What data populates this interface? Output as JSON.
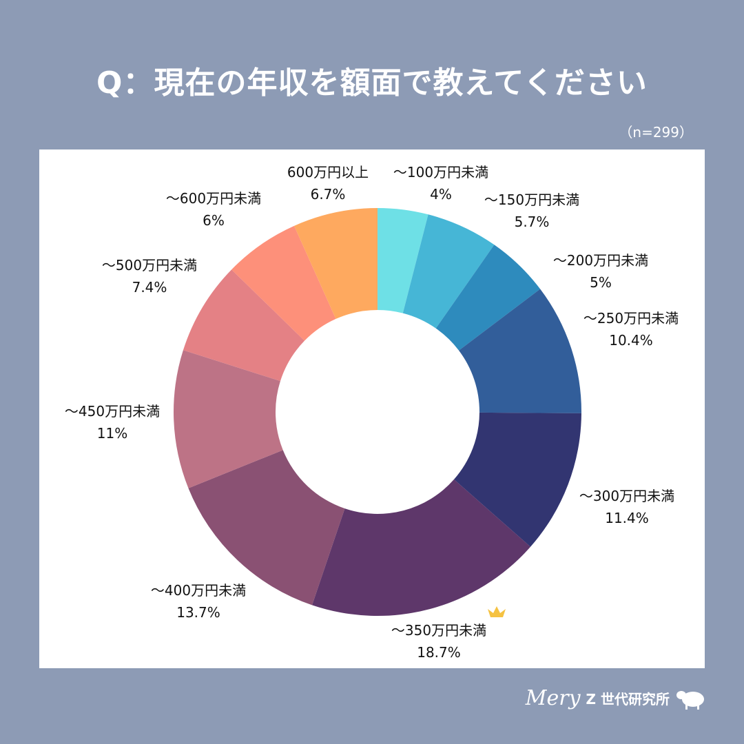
{
  "title": "Q：現在の年収を額面で教えてください",
  "sample": "（n=299）",
  "chart_data": {
    "type": "pie",
    "donut": true,
    "start": "top, clockwise",
    "categories": [
      "～100万円未満",
      "～150万円未満",
      "～200万円未満",
      "～250万円未満",
      "～300万円未満",
      "～350万円未満",
      "～400万円未満",
      "～450万円未満",
      "～500万円未満",
      "～600万円未満",
      "600万円以上"
    ],
    "values": [
      4,
      5.7,
      5,
      10.4,
      11.4,
      18.7,
      13.7,
      11,
      7.4,
      6,
      6.7
    ],
    "value_labels": [
      "4%",
      "5.7%",
      "5%",
      "10.4%",
      "11.4%",
      "18.7%",
      "13.7%",
      "11%",
      "7.4%",
      "6%",
      "6.7%"
    ],
    "colors": [
      "#6ee0e6",
      "#46b6d6",
      "#2e8bbd",
      "#325e9a",
      "#323571",
      "#5e376a",
      "#8a5173",
      "#bd7386",
      "#e48185",
      "#fd907a",
      "#fea95f"
    ],
    "highlight": {
      "category": "～350万円未満",
      "icon": "crown-icon",
      "color": "#f5c242"
    }
  },
  "logo": {
    "brand": "Mery",
    "label": "Z 世代研究所",
    "icon": "sheep-icon"
  }
}
